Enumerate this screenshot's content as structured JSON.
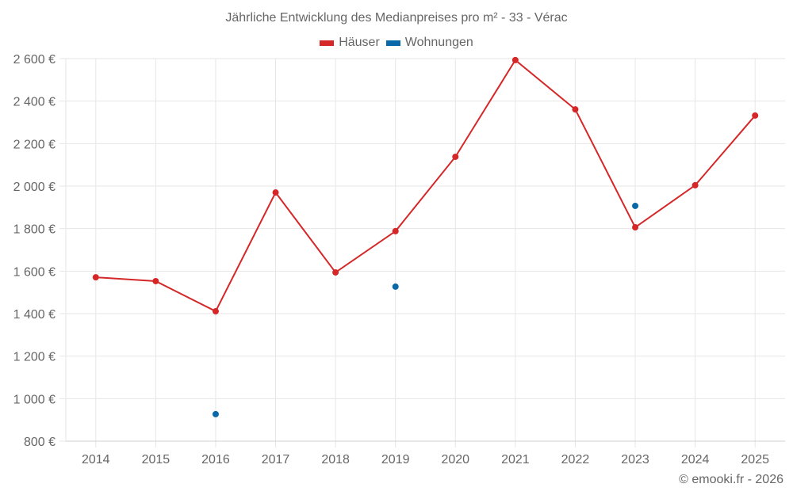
{
  "chart": {
    "title": "Jährliche Entwicklung des Medianpreises pro m² - 33 - Vérac",
    "credit": "© emooki.fr - 2026",
    "legend": [
      {
        "label": "Häuser",
        "color": "#d62728"
      },
      {
        "label": "Wohnungen",
        "color": "#0868a8"
      }
    ]
  },
  "chart_data": {
    "type": "line",
    "title": "Jährliche Entwicklung des Medianpreises pro m² - 33 - Vérac",
    "xlabel": "",
    "ylabel": "",
    "categories": [
      "2014",
      "2015",
      "2016",
      "2017",
      "2018",
      "2019",
      "2020",
      "2021",
      "2022",
      "2023",
      "2024",
      "2025"
    ],
    "series": [
      {
        "name": "Häuser",
        "color": "#d62728",
        "mode": "lines+markers",
        "values": [
          1571,
          1553,
          1411,
          1970,
          1594,
          1788,
          2138,
          2593,
          2361,
          1806,
          2004,
          2332
        ]
      },
      {
        "name": "Wohnungen",
        "color": "#0868a8",
        "mode": "markers",
        "values": [
          null,
          null,
          927,
          null,
          null,
          1527,
          null,
          null,
          null,
          1907,
          null,
          null
        ]
      }
    ],
    "ylim": [
      800,
      2600
    ],
    "yticks": [
      800,
      1000,
      1200,
      1400,
      1600,
      1800,
      2000,
      2200,
      2400,
      2600
    ],
    "ytick_labels": [
      "800 €",
      "1 000 €",
      "1 200 €",
      "1 400 €",
      "1 600 €",
      "1 800 €",
      "2 000 €",
      "2 200 €",
      "2 400 €",
      "2 600 €"
    ],
    "grid": true,
    "legend_position": "top"
  }
}
